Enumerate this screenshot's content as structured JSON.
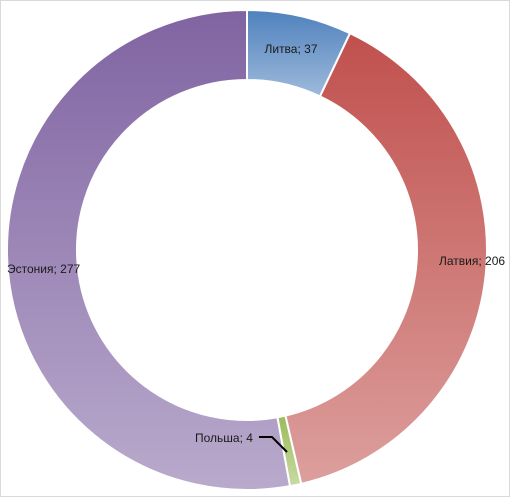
{
  "chart_data": {
    "type": "pie",
    "subtype": "doughnut",
    "title": "",
    "series": [
      {
        "name": "",
        "categories": [
          "Литва",
          "Латвия",
          "Польша",
          "Эстония"
        ],
        "values": [
          37,
          206,
          4,
          277
        ],
        "labels": [
          "Литва; 37",
          "Латвия; 206",
          "Польша; 4",
          "Эстония; 277"
        ],
        "colors": [
          "#4f81bd",
          "#c0504d",
          "#9bbb59",
          "#8064a2"
        ]
      }
    ],
    "legend": "none",
    "data_labels": "category; value"
  }
}
